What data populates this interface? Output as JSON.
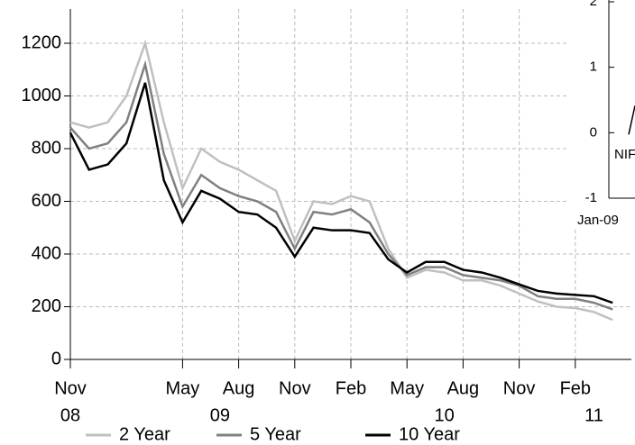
{
  "chart_data": [
    {
      "type": "line",
      "x": [
        "2008-11",
        "2008-12",
        "2009-01",
        "2009-02",
        "2009-03",
        "2009-04",
        "2009-05",
        "2009-06",
        "2009-07",
        "2009-08",
        "2009-09",
        "2009-10",
        "2009-11",
        "2009-12",
        "2010-01",
        "2010-02",
        "2010-03",
        "2010-04",
        "2010-05",
        "2010-06",
        "2010-07",
        "2010-08",
        "2010-09",
        "2010-10",
        "2010-11",
        "2010-12",
        "2011-01",
        "2011-02",
        "2011-03",
        "2011-04"
      ],
      "series": [
        {
          "name": "2 Year",
          "color": "#c0c0c0",
          "values": [
            900,
            880,
            900,
            1000,
            1200,
            900,
            650,
            800,
            750,
            720,
            680,
            640,
            450,
            600,
            590,
            620,
            600,
            420,
            310,
            340,
            330,
            300,
            300,
            280,
            250,
            220,
            200,
            195,
            180,
            150
          ]
        },
        {
          "name": "5 Year",
          "color": "#808080",
          "values": [
            880,
            800,
            820,
            900,
            1120,
            780,
            580,
            700,
            650,
            620,
            600,
            560,
            420,
            560,
            550,
            570,
            520,
            400,
            320,
            350,
            350,
            320,
            310,
            300,
            280,
            240,
            230,
            230,
            215,
            190
          ]
        },
        {
          "name": "10 Year",
          "color": "#000000",
          "values": [
            860,
            720,
            740,
            820,
            1050,
            680,
            520,
            640,
            610,
            560,
            550,
            500,
            390,
            500,
            490,
            490,
            480,
            380,
            330,
            370,
            370,
            340,
            330,
            310,
            285,
            260,
            250,
            245,
            240,
            215
          ]
        }
      ],
      "xlim": [
        "2008-11",
        "2011-05"
      ],
      "xticks": [
        {
          "value": "2008-11",
          "label": "Nov"
        },
        {
          "value": "2009-05",
          "label": "May"
        },
        {
          "value": "2009-08",
          "label": "Aug"
        },
        {
          "value": "2009-11",
          "label": "Nov"
        },
        {
          "value": "2010-02",
          "label": "Feb"
        },
        {
          "value": "2010-05",
          "label": "May"
        },
        {
          "value": "2010-08",
          "label": "Aug"
        },
        {
          "value": "2010-11",
          "label": "Nov"
        },
        {
          "value": "2011-02",
          "label": "Feb"
        }
      ],
      "xtick_years": [
        {
          "value": "2008-11",
          "label": "08"
        },
        {
          "value": "2009-07",
          "label": "09"
        },
        {
          "value": "2010-07",
          "label": "10"
        },
        {
          "value": "2011-03",
          "label": "11"
        }
      ],
      "ylim": [
        0,
        1330
      ],
      "yticks": [
        0,
        200,
        400,
        600,
        800,
        1000,
        1200
      ],
      "grid": true,
      "legend": "bottom"
    },
    {
      "type": "line",
      "categories": [
        "Jan-09"
      ],
      "annotation": "NIF",
      "ylim": [
        -1,
        2
      ],
      "yticks": [
        -1,
        0,
        1,
        2
      ]
    }
  ]
}
